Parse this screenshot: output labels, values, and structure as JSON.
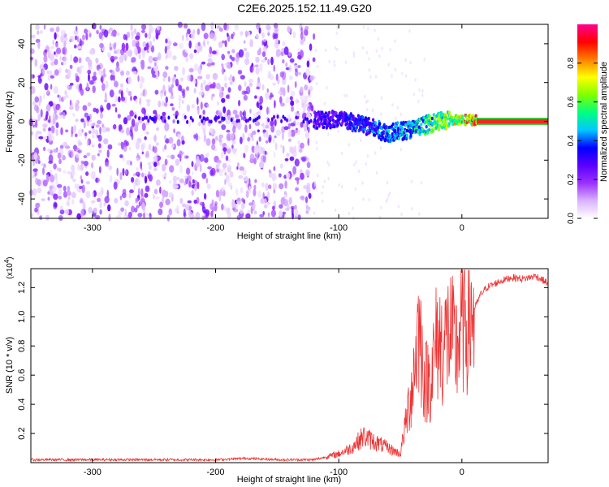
{
  "title": "C2E6.2025.152.11.49.G20",
  "chart_data": [
    {
      "type": "heatmap",
      "name": "spectrogram",
      "xlabel": "Height of straight line (km)",
      "ylabel": "Frequency (Hz)",
      "xlim": [
        -350,
        70
      ],
      "ylim": [
        -50,
        50
      ],
      "xticks": [
        -300,
        -200,
        -100,
        0
      ],
      "yticks": [
        -40,
        -20,
        0,
        20,
        40
      ],
      "colorbar": {
        "label": "Normalized spectral amplitude",
        "range": [
          0,
          1
        ],
        "ticks": [
          "0.0",
          "0.2",
          "0.4",
          "0.6",
          "0.8"
        ],
        "tick_values": [
          0.0,
          0.2,
          0.4,
          0.6,
          0.8
        ],
        "colors": [
          "#ffffff",
          "#d9b3ff",
          "#9b30ff",
          "#5a00ff",
          "#0000ff",
          "#00c8ff",
          "#00ff80",
          "#80ff00",
          "#ffff00",
          "#ff8000",
          "#ff0000",
          "#ff0090"
        ]
      },
      "noise_region_x": [
        -350,
        -120
      ],
      "signal_track": [
        {
          "x": -120,
          "freq": 1,
          "amp": 0.3
        },
        {
          "x": -100,
          "freq": 1,
          "amp": 0.35
        },
        {
          "x": -80,
          "freq": -2,
          "amp": 0.4
        },
        {
          "x": -60,
          "freq": -6,
          "amp": 0.45
        },
        {
          "x": -40,
          "freq": -4,
          "amp": 0.5
        },
        {
          "x": -20,
          "freq": 0,
          "amp": 0.65
        },
        {
          "x": 0,
          "freq": 1,
          "amp": 0.8
        },
        {
          "x": 20,
          "freq": 0,
          "amp": 1.0
        },
        {
          "x": 70,
          "freq": 0,
          "amp": 1.0
        }
      ]
    },
    {
      "type": "line",
      "name": "snr",
      "xlabel": "Height of straight line (km)",
      "ylabel": "SNR (10 * v/v)",
      "yscale_label": "(x10",
      "yscale_exp": "4",
      "xlim": [
        -350,
        70
      ],
      "ylim": [
        0,
        1.33
      ],
      "xticks": [
        -300,
        -200,
        -100,
        0
      ],
      "yticks": [
        "0.2",
        "0.4",
        "0.6",
        "0.8",
        "1.0",
        "1.2"
      ],
      "ytick_values": [
        0.2,
        0.4,
        0.6,
        0.8,
        1.0,
        1.2
      ],
      "color": "#ee3333",
      "series": [
        {
          "x": -350,
          "y": 0.02
        },
        {
          "x": -300,
          "y": 0.02
        },
        {
          "x": -250,
          "y": 0.02
        },
        {
          "x": -200,
          "y": 0.02
        },
        {
          "x": -175,
          "y": 0.03
        },
        {
          "x": -150,
          "y": 0.02
        },
        {
          "x": -120,
          "y": 0.02
        },
        {
          "x": -100,
          "y": 0.06
        },
        {
          "x": -90,
          "y": 0.1
        },
        {
          "x": -80,
          "y": 0.18
        },
        {
          "x": -70,
          "y": 0.14
        },
        {
          "x": -60,
          "y": 0.1
        },
        {
          "x": -50,
          "y": 0.06
        },
        {
          "x": -45,
          "y": 0.3
        },
        {
          "x": -40,
          "y": 0.55
        },
        {
          "x": -35,
          "y": 0.95
        },
        {
          "x": -30,
          "y": 0.55
        },
        {
          "x": -25,
          "y": 0.6
        },
        {
          "x": -20,
          "y": 0.85
        },
        {
          "x": -15,
          "y": 0.8
        },
        {
          "x": -10,
          "y": 0.9
        },
        {
          "x": -5,
          "y": 0.75
        },
        {
          "x": 0,
          "y": 0.95
        },
        {
          "x": 5,
          "y": 1.0
        },
        {
          "x": 10,
          "y": 1.05
        },
        {
          "x": 15,
          "y": 1.15
        },
        {
          "x": 20,
          "y": 1.2
        },
        {
          "x": 30,
          "y": 1.24
        },
        {
          "x": 40,
          "y": 1.27
        },
        {
          "x": 50,
          "y": 1.26
        },
        {
          "x": 60,
          "y": 1.28
        },
        {
          "x": 70,
          "y": 1.23
        }
      ]
    }
  ]
}
